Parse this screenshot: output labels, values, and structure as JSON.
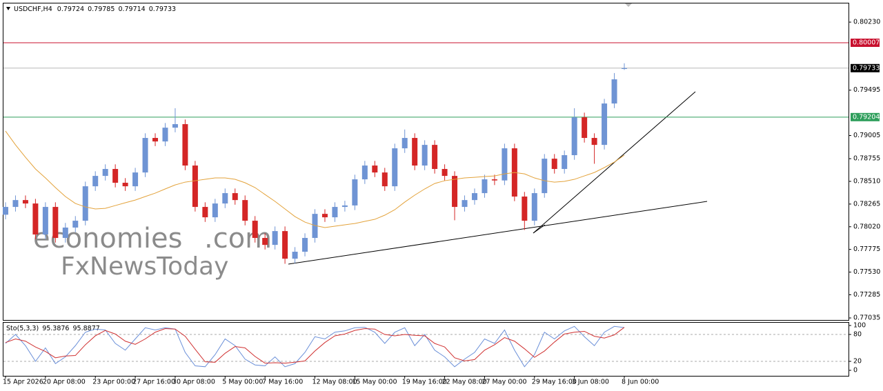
{
  "chart_data": [
    {
      "type": "candlestick",
      "title": "USDCHF,H4",
      "up_color": "#6f94d4",
      "down_color": "#d42626",
      "categories": [
        "15 Apr 2026",
        null,
        null,
        null,
        "20 Apr 08:00",
        null,
        null,
        null,
        null,
        "23 Apr 00:00",
        null,
        null,
        null,
        "27 Apr 16:00",
        null,
        null,
        null,
        "30 Apr 08:00",
        null,
        null,
        null,
        null,
        "5 May 00:00",
        null,
        null,
        null,
        "7 May 16:00",
        null,
        null,
        null,
        null,
        "12 May 08:00",
        null,
        null,
        null,
        "15 May 00:00",
        null,
        null,
        null,
        null,
        "19 May 16:00",
        null,
        null,
        null,
        "22 May 08:00",
        null,
        null,
        null,
        "27 May 00:00",
        null,
        null,
        null,
        null,
        "29 May 16:00",
        null,
        null,
        null,
        "3 Jun 08:00",
        null,
        null,
        null,
        null,
        "8 Jun 00:00"
      ],
      "open": [
        0.7815,
        0.78234,
        0.78308,
        0.78271,
        0.77936,
        0.78234,
        0.77899,
        0.78011,
        0.78085,
        0.78457,
        0.78569,
        0.78644,
        0.78495,
        0.78457,
        0.78606,
        0.78979,
        0.78941,
        0.7909,
        0.79128,
        0.78681,
        0.78234,
        0.78122,
        0.78271,
        0.78383,
        0.78308,
        0.78085,
        0.77899,
        0.77824,
        0.77973,
        0.77675,
        0.7775,
        0.77899,
        0.78159,
        0.78122,
        0.78234,
        0.7825,
        0.78532,
        0.78681,
        0.78606,
        0.78457,
        0.78867,
        0.78979,
        0.78681,
        0.78904,
        0.78644,
        0.78569,
        0.78234,
        0.78308,
        0.78383,
        0.78532,
        0.7852,
        0.78867,
        0.78346,
        0.78085,
        0.78383,
        0.78755,
        0.78644,
        0.78793,
        0.79202,
        0.78979,
        0.78904,
        0.79351,
        0.79724
      ],
      "high": [
        0.78284,
        0.78358,
        0.78358,
        0.78321,
        0.78284,
        0.78284,
        0.78061,
        0.78135,
        0.78507,
        0.78619,
        0.78694,
        0.78694,
        0.78545,
        0.78656,
        0.79029,
        0.79029,
        0.7914,
        0.793,
        0.79178,
        0.78731,
        0.78284,
        0.78321,
        0.78433,
        0.78433,
        0.78358,
        0.78135,
        0.77949,
        0.78023,
        0.78023,
        0.778,
        0.77949,
        0.78209,
        0.78209,
        0.78284,
        0.783,
        0.78582,
        0.78731,
        0.78731,
        0.78656,
        0.78917,
        0.7907,
        0.79029,
        0.78954,
        0.78954,
        0.78694,
        0.78619,
        0.78358,
        0.78433,
        0.78582,
        0.78582,
        0.78917,
        0.78917,
        0.78396,
        0.78433,
        0.78805,
        0.78805,
        0.78843,
        0.793,
        0.79252,
        0.79029,
        0.79401,
        0.7968,
        0.79785
      ],
      "low": [
        0.781,
        0.78184,
        0.78221,
        0.77886,
        0.77886,
        0.77849,
        0.77849,
        0.77961,
        0.78035,
        0.78407,
        0.78519,
        0.78445,
        0.78407,
        0.78407,
        0.78556,
        0.78891,
        0.78891,
        0.7904,
        0.78631,
        0.78184,
        0.78072,
        0.78072,
        0.78221,
        0.78258,
        0.78035,
        0.77849,
        0.77774,
        0.77774,
        0.7762,
        0.77625,
        0.777,
        0.77849,
        0.78072,
        0.78072,
        0.78184,
        0.782,
        0.78482,
        0.78556,
        0.78407,
        0.78407,
        0.78817,
        0.78631,
        0.78631,
        0.78594,
        0.78519,
        0.7809,
        0.78184,
        0.78258,
        0.78333,
        0.7847,
        0.7847,
        0.78296,
        0.77985,
        0.78035,
        0.78333,
        0.78594,
        0.78594,
        0.78743,
        0.78929,
        0.787,
        0.78854,
        0.79301,
        0.79714
      ],
      "close": [
        0.78234,
        0.78308,
        0.78271,
        0.77936,
        0.78234,
        0.77899,
        0.78011,
        0.78085,
        0.78457,
        0.78569,
        0.78644,
        0.78495,
        0.78457,
        0.78606,
        0.78979,
        0.78941,
        0.7909,
        0.79128,
        0.78681,
        0.78234,
        0.78122,
        0.78271,
        0.78383,
        0.78308,
        0.78085,
        0.77899,
        0.77824,
        0.77973,
        0.77675,
        0.7775,
        0.77899,
        0.78159,
        0.78122,
        0.78234,
        0.7825,
        0.78532,
        0.78681,
        0.78606,
        0.78457,
        0.78867,
        0.78979,
        0.78681,
        0.78904,
        0.78644,
        0.78569,
        0.78234,
        0.78308,
        0.78383,
        0.78532,
        0.7852,
        0.78867,
        0.78346,
        0.78085,
        0.78383,
        0.78755,
        0.78644,
        0.78793,
        0.79202,
        0.78979,
        0.78904,
        0.79351,
        0.79612,
        0.79733
      ],
      "ma": {
        "color": "#e3a23a",
        "values": [
          0.79053,
          0.78904,
          0.7877,
          0.78644,
          0.78547,
          0.78443,
          0.78346,
          0.78271,
          0.78234,
          0.78212,
          0.78219,
          0.78249,
          0.78279,
          0.78308,
          0.78346,
          0.78383,
          0.78428,
          0.78472,
          0.78502,
          0.78517,
          0.78532,
          0.78547,
          0.78547,
          0.78532,
          0.78495,
          0.78443,
          0.78368,
          0.78294,
          0.78212,
          0.7813,
          0.7807,
          0.78033,
          0.78011,
          0.78026,
          0.78041,
          0.78055,
          0.78078,
          0.781,
          0.78145,
          0.78204,
          0.78286,
          0.78361,
          0.78428,
          0.78487,
          0.78517,
          0.78532,
          0.78547,
          0.78554,
          0.78562,
          0.78569,
          0.78591,
          0.78606,
          0.78591,
          0.78547,
          0.78517,
          0.78502,
          0.7851,
          0.78532,
          0.78569,
          0.78606,
          0.78659,
          0.78718,
          0.78793
        ]
      },
      "levels": [
        {
          "value": 0.80007,
          "color": "#c8102e",
          "label_color": "#c8102e"
        },
        {
          "value": 0.79733,
          "color": "#b8b8b8",
          "label_color": "#000000"
        },
        {
          "value": 0.79204,
          "color": "#2e9e5b",
          "label_color": "#2e9e5b"
        }
      ],
      "ylim": [
        0.77013,
        0.80439
      ],
      "yticks": [
        {
          "value": 0.8023,
          "label": "0.80230"
        },
        0.79495,
        0.79005,
        0.78755,
        {
          "value": 0.7851,
          "label": "0.78510"
        },
        0.78265,
        {
          "value": 0.7802,
          "label": "0.78020"
        },
        0.77775,
        {
          "value": 0.7753,
          "label": "0.77530"
        },
        0.77285,
        0.77035
      ]
    },
    {
      "type": "line",
      "title": "Sto(5,3,3)",
      "series": [
        {
          "color": "#6a8fd8",
          "values": [
            60,
            80,
            55,
            20,
            50,
            15,
            30,
            55,
            85,
            92,
            90,
            60,
            45,
            70,
            95,
            90,
            95,
            92,
            40,
            10,
            8,
            35,
            70,
            55,
            25,
            12,
            10,
            30,
            8,
            15,
            40,
            75,
            70,
            85,
            88,
            95,
            96,
            85,
            60,
            85,
            95,
            55,
            80,
            45,
            30,
            8,
            25,
            40,
            70,
            60,
            90,
            45,
            8,
            35,
            85,
            70,
            88,
            98,
            75,
            55,
            85,
            98,
            95.3876
          ]
        },
        {
          "color": "#d03030",
          "values": [
            62,
            70,
            65,
            52,
            42,
            28,
            32,
            33,
            57,
            77,
            89,
            81,
            65,
            58,
            70,
            85,
            93,
            92,
            76,
            47,
            19,
            18,
            38,
            53,
            50,
            31,
            16,
            17,
            16,
            18,
            21,
            43,
            62,
            77,
            81,
            89,
            93,
            92,
            80,
            77,
            80,
            78,
            77,
            60,
            52,
            28,
            21,
            24,
            45,
            57,
            73,
            65,
            48,
            29,
            43,
            63,
            81,
            85,
            87,
            76,
            72,
            79,
            95.8877
          ]
        }
      ],
      "levels": [
        20,
        80
      ],
      "ylim": [
        -12.3,
        107.7
      ],
      "yticks": [
        100,
        80,
        20,
        0
      ]
    }
  ],
  "watermark": {
    "brand": "economies",
    "suffix": ".com",
    "second": "FxNewsToday"
  }
}
